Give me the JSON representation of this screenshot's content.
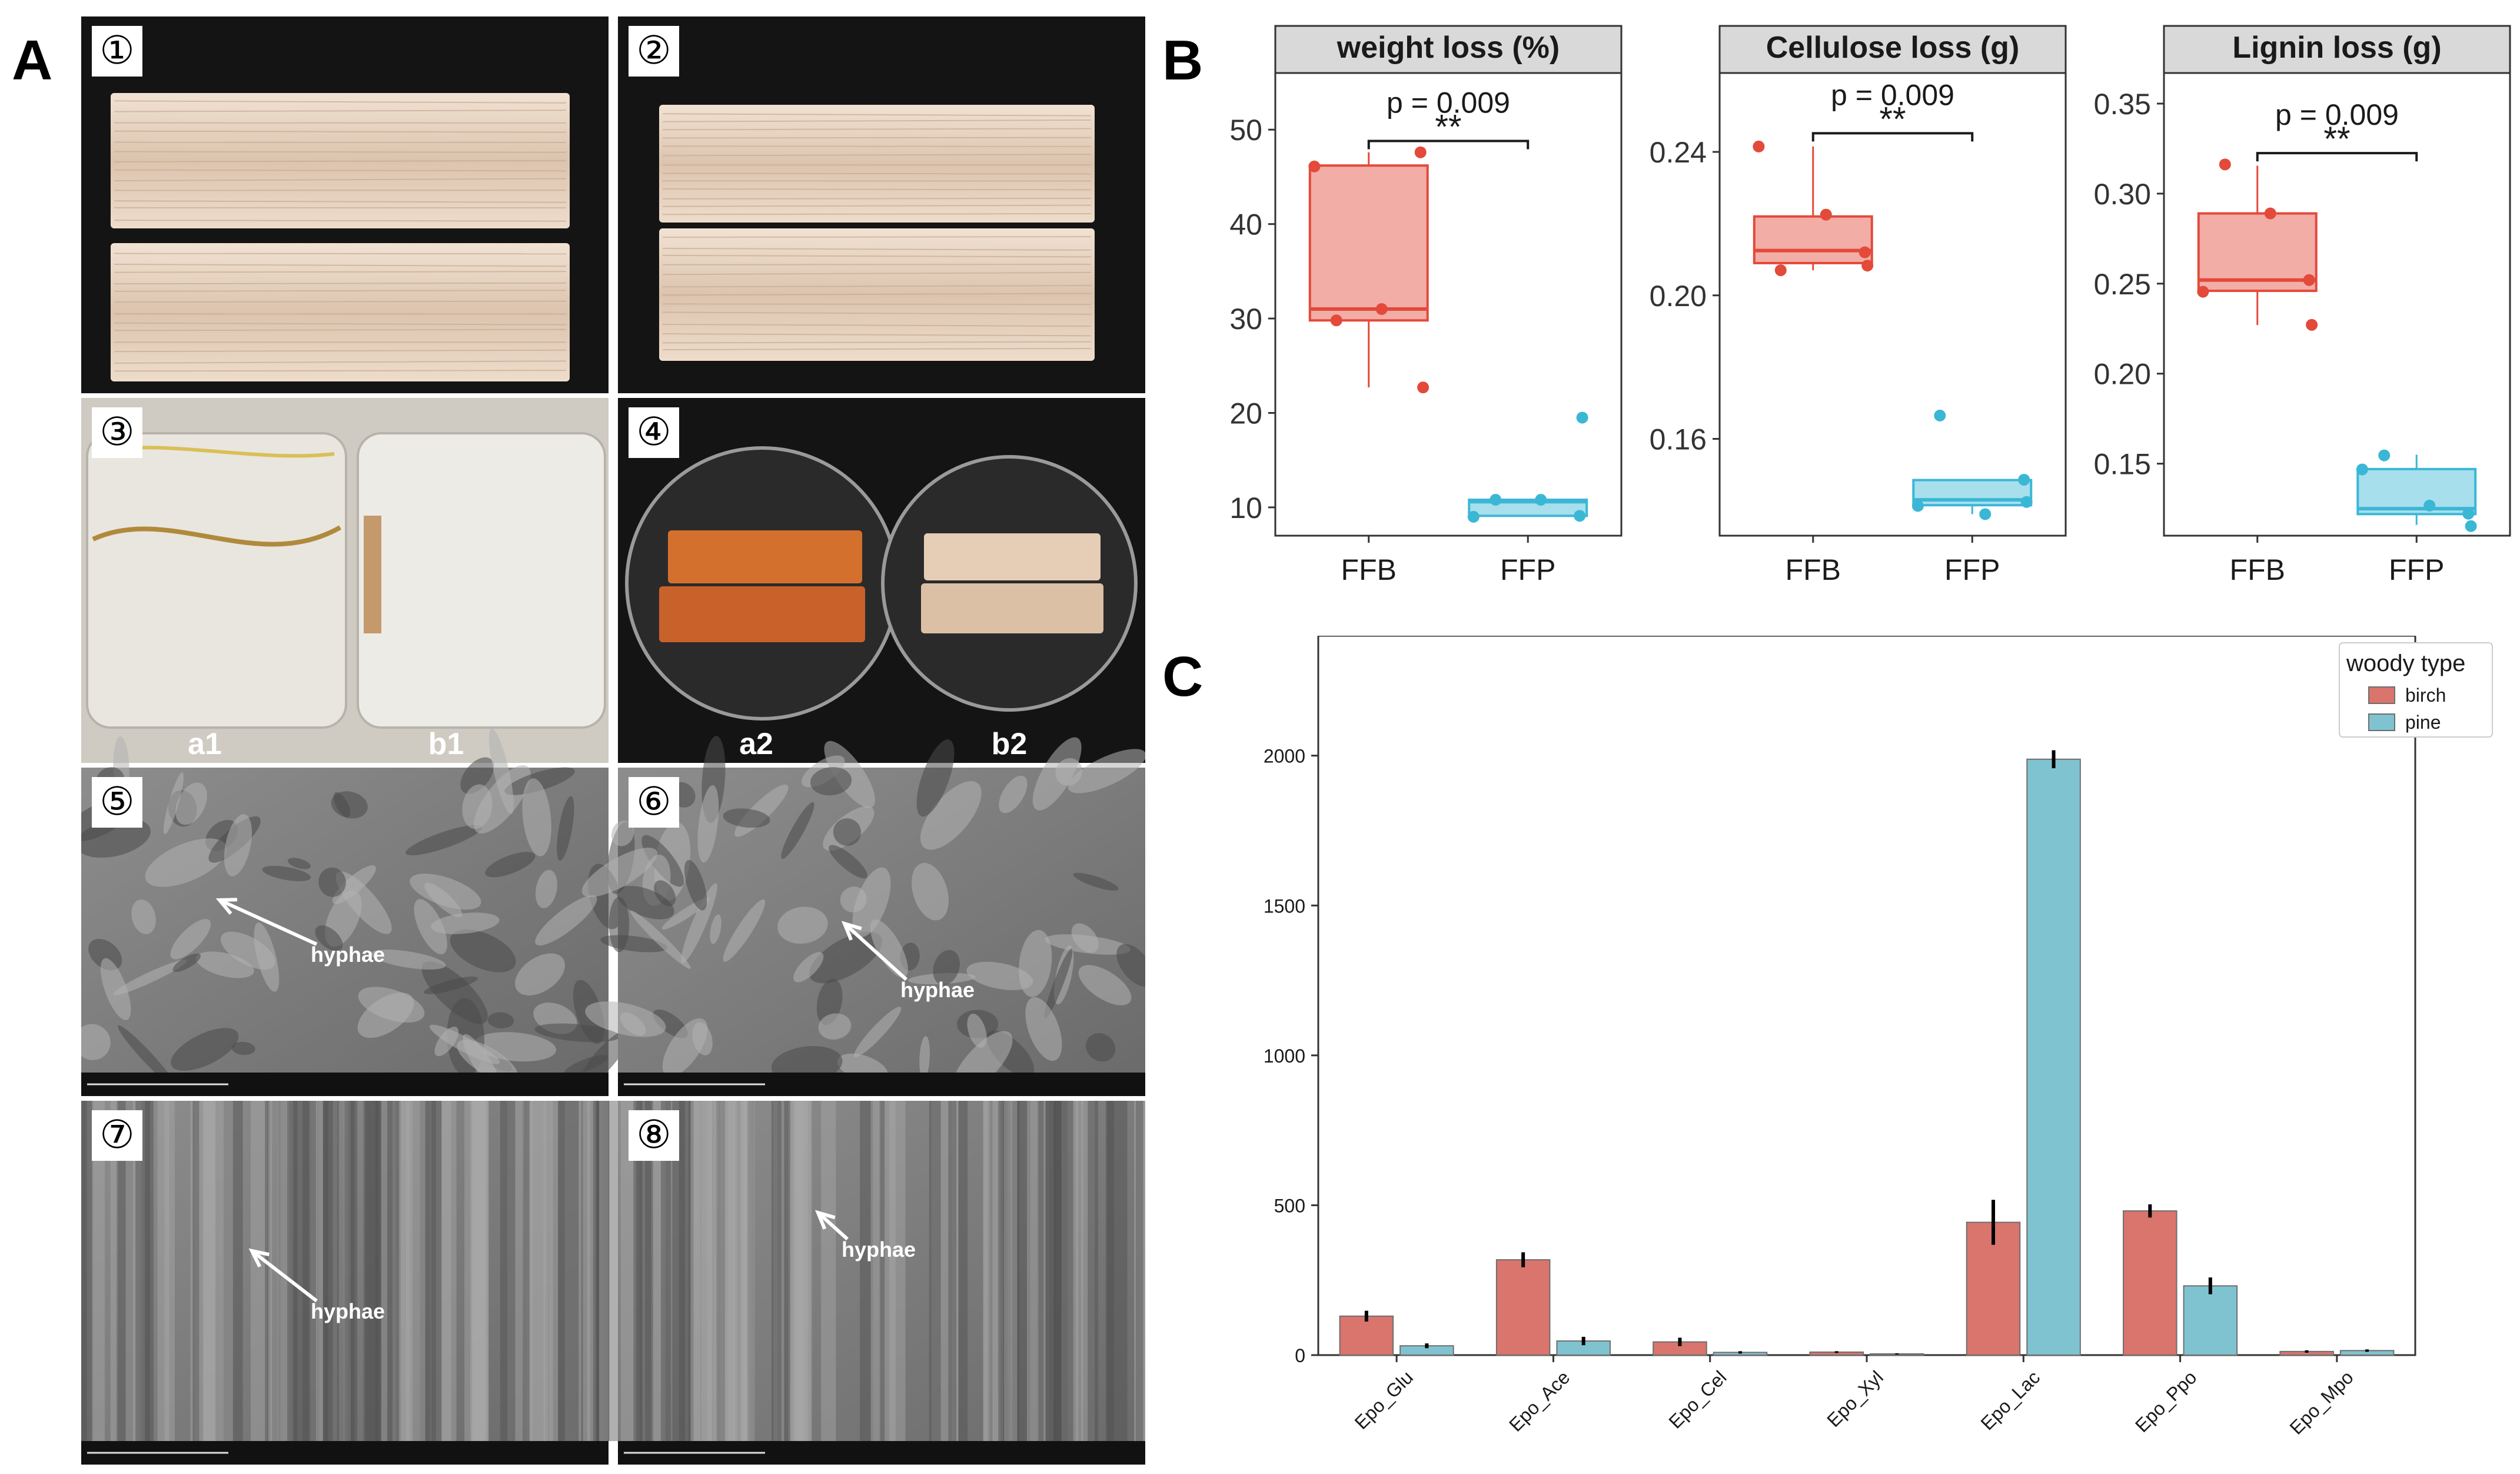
{
  "figure": {
    "panel_labels": [
      "A",
      "B",
      "C"
    ]
  },
  "panel_a": {
    "tiles": [
      {
        "number": "①",
        "kind": "wood-blocks"
      },
      {
        "number": "②",
        "kind": "wood-blocks"
      },
      {
        "number": "③",
        "kind": "jars",
        "labels": [
          "a1",
          "b1"
        ]
      },
      {
        "number": "④",
        "kind": "dishes",
        "labels": [
          "a2",
          "b2"
        ]
      },
      {
        "number": "⑤",
        "kind": "sem",
        "annotation": "hyphae"
      },
      {
        "number": "⑥",
        "kind": "sem",
        "annotation": "hyphae"
      },
      {
        "number": "⑦",
        "kind": "sem",
        "annotation": "hyphae"
      },
      {
        "number": "⑧",
        "kind": "sem",
        "annotation": "hyphae"
      }
    ],
    "colors": {
      "dark_bg": "#141414",
      "wood": "#e7d2c0",
      "jar": "#e9e6df",
      "orange": "#d4702e"
    }
  },
  "chart_data": [
    {
      "type": "box",
      "panel": "B",
      "title": "weight loss (%)",
      "categories": [
        "FFB",
        "FFP"
      ],
      "ylim": [
        7,
        56
      ],
      "yticks": [
        10,
        20,
        30,
        40,
        50
      ],
      "ytick_labels": [
        "10",
        "20",
        "30",
        "40",
        "50"
      ],
      "boxes": [
        {
          "name": "FFB",
          "min": 22.7,
          "q1": 29.8,
          "median": 31.0,
          "q3": 46.2,
          "max": 47.6
        },
        {
          "name": "FFP",
          "min": 9.0,
          "q1": 9.1,
          "median": 10.6,
          "q3": 10.8,
          "max": 10.9
        }
      ],
      "points": {
        "FFB": [
          46.1,
          47.6,
          31.0,
          29.8,
          22.7
        ],
        "FFP": [
          9.0,
          9.1,
          10.8,
          10.8,
          19.5
        ]
      },
      "annotation": {
        "text": "p = 0.009",
        "stars": "**",
        "y": 48.8
      },
      "colors": {
        "FFB": "#e34a3a",
        "FFP": "#3bb7d6"
      }
    },
    {
      "type": "box",
      "panel": "B",
      "title": "Cellulose loss (g)",
      "categories": [
        "FFB",
        "FFP"
      ],
      "ylim": [
        0.133,
        0.262
      ],
      "yticks": [
        0.16,
        0.2,
        0.24
      ],
      "ytick_labels": [
        "0.16",
        "0.20",
        "0.24"
      ],
      "boxes": [
        {
          "name": "FFB",
          "min": 0.207,
          "q1": 0.209,
          "median": 0.2125,
          "q3": 0.222,
          "max": 0.2415
        },
        {
          "name": "FFP",
          "min": 0.139,
          "q1": 0.1415,
          "median": 0.143,
          "q3": 0.1485,
          "max": 0.1485
        }
      ],
      "points": {
        "FFB": [
          0.2415,
          0.212,
          0.2225,
          0.207,
          0.2083
        ],
        "FFP": [
          0.1413,
          0.1486,
          0.139,
          0.1665,
          0.1424
        ]
      },
      "annotation": {
        "text": "p = 0.009",
        "stars": "**",
        "y": 0.2452
      },
      "colors": {
        "FFB": "#e34a3a",
        "FFP": "#3bb7d6"
      }
    },
    {
      "type": "box",
      "panel": "B",
      "title": "Lignin loss (g)",
      "categories": [
        "FFB",
        "FFP"
      ],
      "ylim": [
        0.11,
        0.367
      ],
      "yticks": [
        0.15,
        0.2,
        0.25,
        0.3,
        0.35
      ],
      "ytick_labels": [
        "0.15",
        "0.20",
        "0.25",
        "0.30",
        "0.35"
      ],
      "boxes": [
        {
          "name": "FFB",
          "min": 0.227,
          "q1": 0.246,
          "median": 0.252,
          "q3": 0.289,
          "max": 0.3155
        },
        {
          "name": "FFP",
          "min": 0.116,
          "q1": 0.122,
          "median": 0.125,
          "q3": 0.147,
          "max": 0.155
        }
      ],
      "points": {
        "FFB": [
          0.2455,
          0.252,
          0.289,
          0.3162,
          0.2271
        ],
        "FFP": [
          0.1468,
          0.1222,
          0.1267,
          0.1546,
          0.1153
        ]
      },
      "annotation": {
        "text": "p = 0.009",
        "stars": "**",
        "y": 0.3225
      },
      "colors": {
        "FFB": "#e34a3a",
        "FFP": "#3bb7d6"
      }
    },
    {
      "type": "bar",
      "panel": "C",
      "categories": [
        "Epo_Glu",
        "Epo_Ace",
        "Epo_Cel",
        "Epo_Xyl",
        "Epo_Lac",
        "Epo_Ppo",
        "Epo_Mpo"
      ],
      "series": [
        {
          "name": "birch",
          "color": "#d9756d",
          "values": [
            130,
            318,
            44,
            10,
            443,
            481,
            12
          ],
          "errors": [
            18,
            25,
            14,
            3,
            75,
            22,
            4
          ]
        },
        {
          "name": "pine",
          "color": "#7fc3d1",
          "values": [
            31,
            47,
            9,
            4,
            1988,
            231,
            15
          ],
          "errors": [
            8,
            14,
            4,
            2,
            30,
            28,
            4
          ]
        }
      ],
      "ylim": [
        0,
        2400
      ],
      "yticks": [
        0,
        500,
        1000,
        1500,
        2000
      ],
      "ytick_labels": [
        "0",
        "500",
        "1000",
        "1500",
        "2000"
      ],
      "legend": {
        "title": "woody type",
        "position": "top-right"
      }
    }
  ]
}
